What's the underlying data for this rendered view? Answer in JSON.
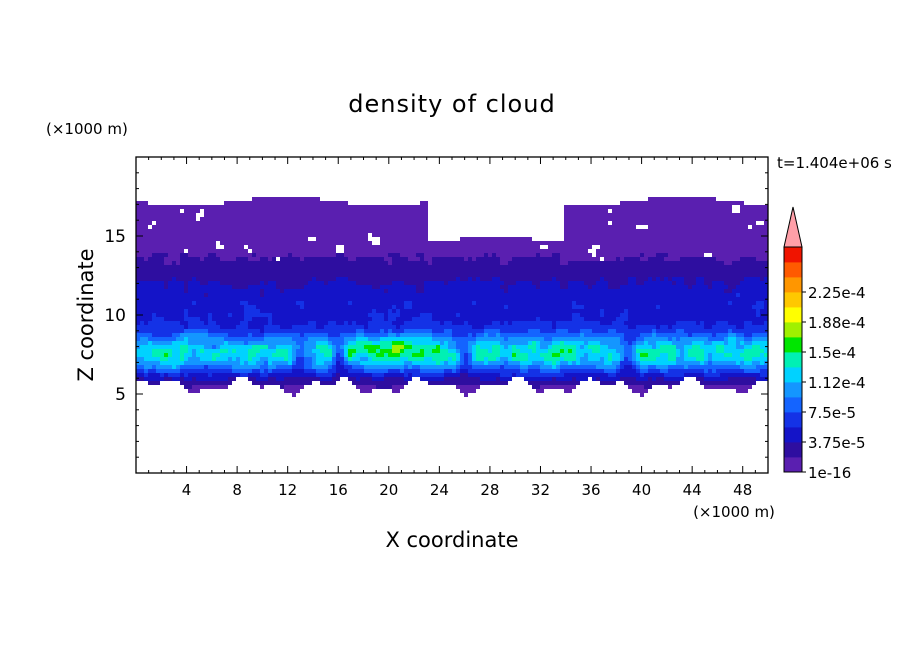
{
  "chart_data": {
    "type": "heatmap",
    "title": "density of cloud",
    "time_label": "t=1.404e+06 s",
    "xlabel": "X coordinate",
    "ylabel": "Z coordinate",
    "x_unit": "(×1000 m)",
    "y_unit": "(×1000 m)",
    "xlim": [
      0,
      50
    ],
    "ylim": [
      0,
      20
    ],
    "x_ticks": [
      "4",
      "8",
      "12",
      "16",
      "20",
      "24",
      "28",
      "32",
      "36",
      "40",
      "44",
      "48"
    ],
    "y_ticks": [
      "5",
      "10",
      "15"
    ],
    "colorbar": {
      "labels": [
        "1e-16",
        "3.75e-5",
        "7.5e-5",
        "1.12e-4",
        "1.5e-4",
        "1.88e-4",
        "2.25e-4"
      ],
      "levels": [
        1e-16,
        1.875e-05,
        3.75e-05,
        5.625e-05,
        7.5e-05,
        9.375e-05,
        0.0001125,
        0.00013125,
        0.00015,
        0.00016875,
        0.0001875,
        0.00020625,
        0.000225,
        0.00024375
      ],
      "colors": [
        "#5a1fb0",
        "#2e0ea0",
        "#1414c8",
        "#1432e6",
        "#1464ff",
        "#1496ff",
        "#00d2ff",
        "#00f0b4",
        "#00e600",
        "#a0f000",
        "#ffff00",
        "#ffc800",
        "#ff9600",
        "#ff5a00",
        "#f01400",
        "#ff9fa8"
      ],
      "overflow": "max"
    },
    "field": {
      "cloud_base_z": 5.5,
      "cloud_top_z": 17.2,
      "max_value": 0.00016,
      "max_location": [
        20,
        8
      ],
      "bands": [
        {
          "z": 7.5,
          "x": [
            0,
            50
          ],
          "value": 0.00012
        },
        {
          "z": 10.5,
          "x": [
            0,
            50
          ],
          "value": 4e-05
        },
        {
          "z": 13,
          "x": [
            0,
            50
          ],
          "value": 1e-05
        }
      ]
    }
  }
}
